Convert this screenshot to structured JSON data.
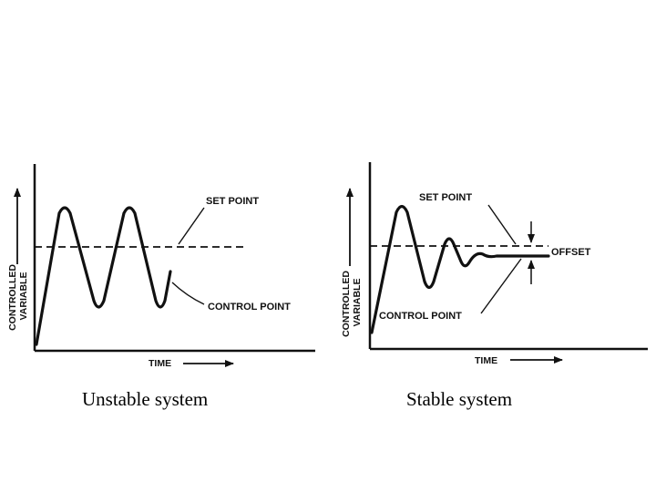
{
  "left_panel": {
    "set_point_label": "SET POINT",
    "control_point_label": "CONTROL POINT",
    "y_axis_line1": "CONTROLLED",
    "y_axis_line2": "VARIABLE",
    "x_axis_label": "TIME",
    "caption": "Unstable system"
  },
  "right_panel": {
    "set_point_label": "SET POINT",
    "control_point_label": "CONTROL POINT",
    "offset_label": "OFFSET",
    "y_axis_line1": "CONTROLLED",
    "y_axis_line2": "VARIABLE",
    "x_axis_label": "TIME",
    "caption": "Stable system"
  },
  "colors": {
    "ink": "#111111",
    "background": "#ffffff"
  }
}
